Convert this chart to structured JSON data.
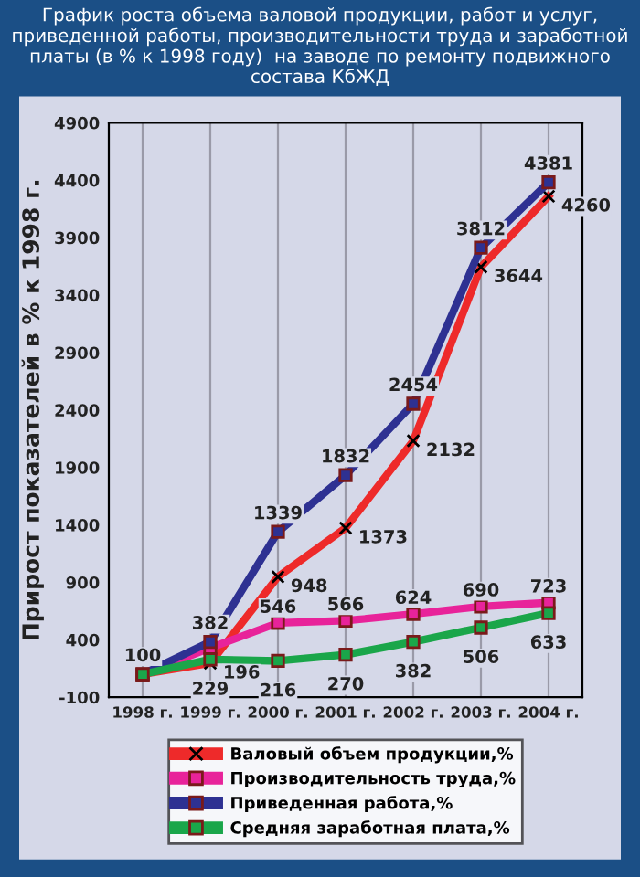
{
  "chart_data": {
    "type": "line",
    "title": "График роста объема валовой продукции, работ и услуг, приведенной работы, производительности труда и заработной платы (в % к 1998 году)  на заводе по ремонту подвижного состава КбЖД",
    "ylabel": "Прирост показателей в % к 1998 г.",
    "categories": [
      "1998 г.",
      "1999 г.",
      "2000 г.",
      "2001 г.",
      "2002 г.",
      "2003 г.",
      "2004 г."
    ],
    "series": [
      {
        "name": "Валовый объем продукции,%",
        "color": "#ee2a2a",
        "marker": "cross",
        "values": [
          100,
          196,
          948,
          1373,
          2132,
          3644,
          4260
        ],
        "value_labels": [
          null,
          "196",
          "948",
          "1373",
          "2132",
          "3644",
          "4260"
        ]
      },
      {
        "name": "Производительность труда,%",
        "color": "#e8239a",
        "marker": "square",
        "values": [
          100,
          330,
          546,
          566,
          624,
          690,
          723
        ],
        "value_labels": [
          null,
          null,
          "546",
          "566",
          "624",
          "690",
          "723"
        ]
      },
      {
        "name": "Приведенная работа,%",
        "color": "#2e3192",
        "marker": "square",
        "values": [
          100,
          382,
          1339,
          1832,
          2454,
          3812,
          4381
        ],
        "value_labels": [
          "100",
          "382",
          "1339",
          "1832",
          "2454",
          "3812",
          "4381"
        ]
      },
      {
        "name": "Средняя заработная плата,%",
        "color": "#1aa64a",
        "marker": "square",
        "values": [
          100,
          229,
          216,
          270,
          382,
          506,
          633
        ],
        "value_labels": [
          null,
          "229",
          "216",
          "270",
          "382",
          "506",
          "633"
        ]
      }
    ],
    "ylim": [
      -100,
      4900
    ],
    "yticks": [
      -100,
      400,
      900,
      1400,
      1900,
      2400,
      2900,
      3400,
      3900,
      4400,
      4900
    ],
    "grid": "x",
    "legend": "bottom"
  }
}
